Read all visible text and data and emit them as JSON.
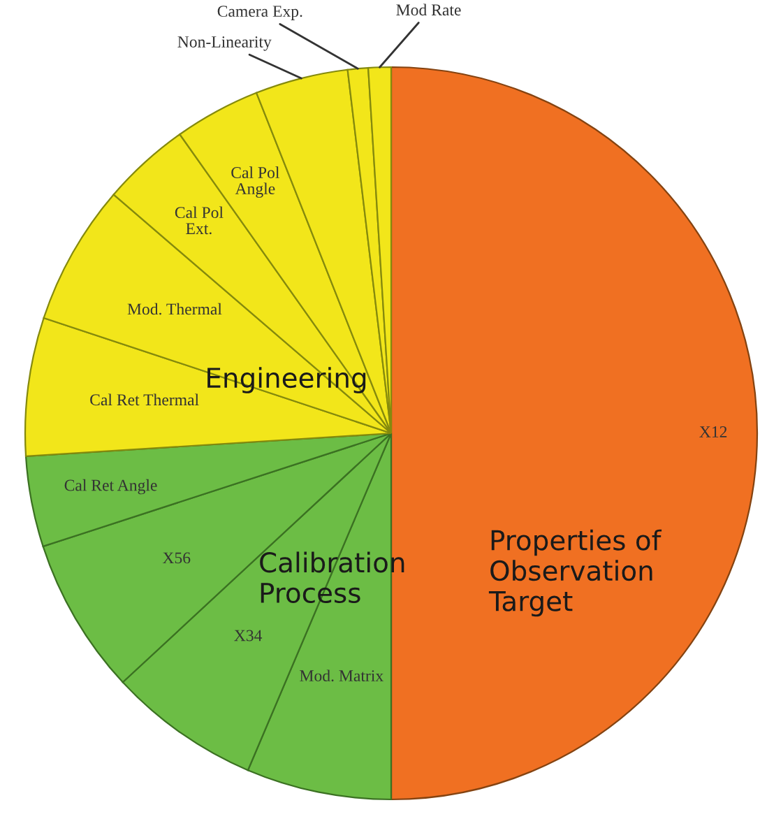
{
  "chart_data": {
    "type": "pie",
    "categories": [
      "X12",
      "Mod. Matrix",
      "X34",
      "X56",
      "Cal Ret Angle",
      "Cal Ret Thermal",
      "Mod. Thermal",
      "Cal Pol\nExt.",
      "Cal Pol\nAngle",
      "Non-Linearity",
      "Camera Exp.",
      "Mod Rate"
    ],
    "values": [
      50,
      6.4,
      6.7,
      6.9,
      4.0,
      6.1,
      6.2,
      3.9,
      3.8,
      4.1,
      0.9,
      1.0
    ],
    "colors": [
      "#f07022",
      "#6cbd45",
      "#6cbd45",
      "#6cbd45",
      "#6cbd45",
      "#f2e61a",
      "#f2e61a",
      "#f2e61a",
      "#f2e61a",
      "#f2e61a",
      "#f2e61a",
      "#f2e61a"
    ],
    "annotations": [
      "Properties of\nObservation\nTarget",
      "Calibration\nProcess",
      "Engineering"
    ]
  }
}
